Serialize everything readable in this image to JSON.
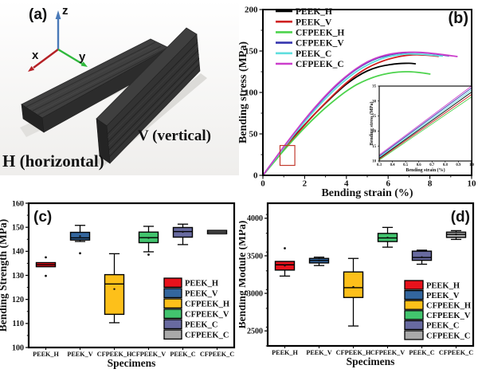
{
  "panel_a": {
    "label": "(a)",
    "axis_triad": {
      "z": {
        "label": "z",
        "color": "#4a7ab8"
      },
      "x": {
        "label": "x",
        "color": "#b52025"
      },
      "y": {
        "label": "y",
        "color": "#2fb83c"
      }
    },
    "caption_h": "H (horizontal)",
    "caption_v": "V (vertical)",
    "caption_color": "#cc1414"
  },
  "chart_data": [
    {
      "id": "b",
      "type": "line",
      "panel_label": "(b)",
      "xlabel": "Bending strain (%)",
      "ylabel": "Bending stress (MPa)",
      "xlim": [
        0,
        10
      ],
      "ylim": [
        0,
        200
      ],
      "xticks": [
        0,
        2,
        4,
        6,
        8,
        10
      ],
      "xtick_labels": [
        "0",
        "2",
        "4",
        "6",
        "8",
        "10"
      ],
      "yticks": [
        0,
        50,
        100,
        150,
        200
      ],
      "ytick_labels": [
        "0",
        "50",
        "100",
        "150",
        "200"
      ],
      "x_minor": 1,
      "y_minor": 25,
      "legend_position": "top-left",
      "grid": false,
      "zoom_rect": {
        "x0": 0.82,
        "x1": 1.53,
        "y0": 12,
        "y1": 36,
        "color": "#c23b2e"
      },
      "series": [
        {
          "name": "PEEK_H",
          "color": "#000000",
          "points": [
            [
              0,
              0
            ],
            [
              0.5,
              16
            ],
            [
              1,
              32
            ],
            [
              1.5,
              47
            ],
            [
              2,
              61
            ],
            [
              2.5,
              74.5
            ],
            [
              3,
              87
            ],
            [
              3.5,
              99
            ],
            [
              4,
              110
            ],
            [
              4.5,
              119
            ],
            [
              5,
              126
            ],
            [
              5.5,
              130.5
            ],
            [
              6,
              133.2
            ],
            [
              6.5,
              134.8
            ],
            [
              7,
              135.2
            ],
            [
              7.3,
              134.6
            ]
          ]
        },
        {
          "name": "PEEK_V",
          "color": "#cf2020",
          "points": [
            [
              0,
              0
            ],
            [
              0.5,
              15.6
            ],
            [
              1,
              31.2
            ],
            [
              1.5,
              46
            ],
            [
              2,
              60.5
            ],
            [
              2.5,
              74.5
            ],
            [
              3,
              87.5
            ],
            [
              3.5,
              100
            ],
            [
              4,
              111.5
            ],
            [
              4.5,
              121.5
            ],
            [
              5,
              129.5
            ],
            [
              5.5,
              135.5
            ],
            [
              6,
              140
            ],
            [
              6.5,
              143.2
            ],
            [
              7,
              145
            ],
            [
              7.5,
              145.4
            ],
            [
              8,
              144.6
            ],
            [
              8.4,
              143.6
            ]
          ]
        },
        {
          "name": "CFPEEK_H",
          "color": "#4cd34c",
          "points": [
            [
              0,
              0
            ],
            [
              0.5,
              15
            ],
            [
              1,
              30
            ],
            [
              1.5,
              44
            ],
            [
              2,
              57.5
            ],
            [
              2.5,
              70
            ],
            [
              3,
              81.5
            ],
            [
              3.5,
              92
            ],
            [
              4,
              101.5
            ],
            [
              4.5,
              109.5
            ],
            [
              5,
              115.5
            ],
            [
              5.5,
              120
            ],
            [
              6,
              123
            ],
            [
              6.5,
              124.6
            ],
            [
              7,
              125
            ],
            [
              7.5,
              124
            ],
            [
              8,
              122.2
            ]
          ]
        },
        {
          "name": "CFPEEK_V",
          "color": "#3434ae",
          "points": [
            [
              0,
              0
            ],
            [
              0.5,
              17
            ],
            [
              1,
              34
            ],
            [
              1.5,
              50.5
            ],
            [
              2,
              66.5
            ],
            [
              2.5,
              81.5
            ],
            [
              3,
              95.5
            ],
            [
              3.5,
              108
            ],
            [
              4,
              119
            ],
            [
              4.5,
              128.5
            ],
            [
              5,
              136
            ],
            [
              5.5,
              141.5
            ],
            [
              6,
              145
            ],
            [
              6.5,
              147.2
            ],
            [
              7,
              148.2
            ],
            [
              7.5,
              148.2
            ],
            [
              8,
              147.2
            ],
            [
              8.5,
              145.6
            ],
            [
              8.9,
              144.2
            ]
          ]
        },
        {
          "name": "PEEK_C",
          "color": "#5fdede",
          "points": [
            [
              0,
              0
            ],
            [
              0.5,
              16.6
            ],
            [
              1,
              33.2
            ],
            [
              1.5,
              49.2
            ],
            [
              2,
              64.5
            ],
            [
              2.5,
              79
            ],
            [
              3,
              92.5
            ],
            [
              3.5,
              105
            ],
            [
              4,
              116
            ],
            [
              4.5,
              125.5
            ],
            [
              5,
              133
            ],
            [
              5.5,
              138.8
            ],
            [
              6,
              143
            ],
            [
              6.5,
              145.4
            ],
            [
              7,
              146.4
            ],
            [
              7.5,
              146.2
            ],
            [
              8,
              145.2
            ],
            [
              8.6,
              143.8
            ]
          ]
        },
        {
          "name": "CFPEEK_C",
          "color": "#cb3ecb",
          "points": [
            [
              0,
              0
            ],
            [
              0.5,
              17.2
            ],
            [
              1,
              34.6
            ],
            [
              1.5,
              51.2
            ],
            [
              2,
              67.2
            ],
            [
              2.5,
              82.2
            ],
            [
              3,
              96.2
            ],
            [
              3.5,
              108.8
            ],
            [
              4,
              119.8
            ],
            [
              4.5,
              129.2
            ],
            [
              5,
              136.8
            ],
            [
              5.5,
              142.2
            ],
            [
              6,
              145.8
            ],
            [
              6.5,
              147.8
            ],
            [
              7,
              148.6
            ],
            [
              7.5,
              148.4
            ],
            [
              8,
              147.4
            ],
            [
              8.7,
              145.4
            ],
            [
              9.3,
              143.4
            ]
          ]
        }
      ],
      "inset": {
        "id": "b-inset",
        "xlabel": "Bending strain (%)",
        "ylabel": "Bending stress (MPa)",
        "xlim": [
          0.3,
          1.0
        ],
        "ylim": [
          10,
          35
        ],
        "xticks": [
          0.3,
          0.4,
          0.5,
          0.6,
          0.7,
          0.8,
          0.9,
          1.0
        ],
        "xtick_labels": [
          "0.3",
          "0.4",
          "0.5",
          "0.6",
          "0.7",
          "0.8",
          "0.9",
          "1.0"
        ],
        "yticks": [
          10,
          15,
          20,
          25,
          30,
          35
        ],
        "ytick_labels": [
          "10",
          "15",
          "20",
          "25",
          "30",
          "35"
        ],
        "series": [
          {
            "name": "PEEK_H",
            "color": "#000000",
            "points": [
              [
                0.3,
                10.9
              ],
              [
                1.0,
                33.0
              ]
            ]
          },
          {
            "name": "PEEK_V",
            "color": "#cf2020",
            "points": [
              [
                0.3,
                10.6
              ],
              [
                1.0,
                32.2
              ]
            ]
          },
          {
            "name": "CFPEEK_H",
            "color": "#4cd34c",
            "points": [
              [
                0.3,
                10.3
              ],
              [
                1.0,
                31.4
              ]
            ]
          },
          {
            "name": "CFPEEK_V",
            "color": "#3434ae",
            "points": [
              [
                0.3,
                11.6
              ],
              [
                1.0,
                34.4
              ]
            ]
          },
          {
            "name": "PEEK_C",
            "color": "#5fdede",
            "points": [
              [
                0.3,
                11.2
              ],
              [
                1.0,
                33.7
              ]
            ]
          },
          {
            "name": "CFPEEK_C",
            "color": "#cb3ecb",
            "points": [
              [
                0.3,
                12.0
              ],
              [
                1.0,
                35.0
              ]
            ]
          }
        ]
      }
    },
    {
      "id": "c",
      "type": "box",
      "panel_label": "(c)",
      "xlabel": "Specimens",
      "ylabel": "Bending Strength (MPa)",
      "ylim": [
        100,
        160
      ],
      "yticks": [
        100,
        110,
        120,
        130,
        140,
        150,
        160
      ],
      "ytick_labels": [
        "100",
        "110",
        "120",
        "130",
        "140",
        "150",
        "160"
      ],
      "y_minor": 5,
      "categories": [
        "PEEK_H",
        "PEEK_V",
        "CFPEEK_H",
        "CFPEEK_V",
        "PEEK_C",
        "CFPEEK_C"
      ],
      "boxes": [
        {
          "name": "PEEK_H",
          "color": "#e8121c",
          "low": 133.5,
          "q1": 133.6,
          "median": 134.4,
          "q3": 135.3,
          "high": 135.4,
          "outliers": [
            137.5,
            129.8
          ]
        },
        {
          "name": "PEEK_V",
          "color": "#33669e",
          "low": 144.1,
          "q1": 144.7,
          "median": 145.6,
          "q3": 147.9,
          "high": 150.8,
          "mean": 146.3,
          "outliers": [
            139.2
          ]
        },
        {
          "name": "CFPEEK_H",
          "color": "#fdc01a",
          "low": 110.3,
          "q1": 113.8,
          "median": 126.4,
          "q3": 130.3,
          "high": 139.0,
          "mean": 124.3,
          "outliers": []
        },
        {
          "name": "CFPEEK_V",
          "color": "#42c46e",
          "low": 139.8,
          "q1": 143.6,
          "median": 145.7,
          "q3": 148.0,
          "high": 150.4,
          "mean": 145.6,
          "outliers": [
            138.6
          ]
        },
        {
          "name": "PEEK_C",
          "color": "#686aa0",
          "low": 142.8,
          "q1": 145.9,
          "median": 148.2,
          "q3": 149.9,
          "high": 151.3,
          "mean": 148.1,
          "outliers": []
        },
        {
          "name": "CFPEEK_C",
          "color": "#a9a9a9",
          "low": 147.1,
          "q1": 147.3,
          "median": 148.0,
          "q3": 148.7,
          "high": 148.9,
          "outliers": []
        }
      ]
    },
    {
      "id": "d",
      "type": "box",
      "panel_label": "(d)",
      "xlabel": "Specimens",
      "ylabel": "Bending Module (MPa)",
      "ylim": [
        2300,
        4200
      ],
      "yticks": [
        2500,
        3000,
        3500,
        4000
      ],
      "ytick_labels": [
        "2500",
        "3000",
        "3500",
        "4000"
      ],
      "y_minor": 250,
      "categories": [
        "PEEK_H",
        "PEEK_V",
        "CFPEEK_H",
        "CFPEEK_V",
        "PEEK_C",
        "CFPEEK_C"
      ],
      "boxes": [
        {
          "name": "PEEK_H",
          "color": "#e8121c",
          "low": 3230,
          "q1": 3310,
          "median": 3380,
          "q3": 3425,
          "high": 3435,
          "mean": 3370,
          "outliers": [
            3600
          ]
        },
        {
          "name": "PEEK_V",
          "color": "#33669e",
          "low": 3370,
          "q1": 3405,
          "median": 3438,
          "q3": 3465,
          "high": 3482,
          "mean": 3437,
          "outliers": []
        },
        {
          "name": "CFPEEK_H",
          "color": "#fdc01a",
          "low": 2565,
          "q1": 2945,
          "median": 3075,
          "q3": 3285,
          "high": 3465,
          "mean": 3085,
          "outliers": []
        },
        {
          "name": "CFPEEK_V",
          "color": "#42c46e",
          "low": 3615,
          "q1": 3690,
          "median": 3738,
          "q3": 3798,
          "high": 3878,
          "mean": 3742,
          "outliers": []
        },
        {
          "name": "PEEK_C",
          "color": "#686aa0",
          "low": 3388,
          "q1": 3440,
          "median": 3478,
          "q3": 3562,
          "high": 3575,
          "mean": 3482,
          "outliers": []
        },
        {
          "name": "CFPEEK_C",
          "color": "#a9a9a9",
          "low": 3718,
          "q1": 3745,
          "median": 3785,
          "q3": 3815,
          "high": 3835,
          "mean": 3786,
          "outliers": []
        }
      ]
    }
  ]
}
